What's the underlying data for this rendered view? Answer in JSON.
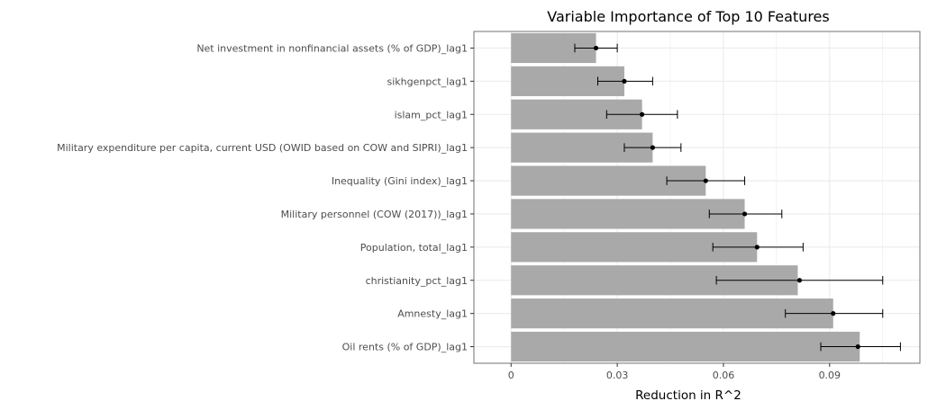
{
  "chart_data": {
    "type": "bar",
    "orientation": "horizontal",
    "title": "Variable Importance of Top 10 Features",
    "xlabel": "Reduction in R^2",
    "ylabel": "",
    "xlim": [
      -0.0105,
      0.1155
    ],
    "x_ticks": [
      0,
      0.03,
      0.06,
      0.09
    ],
    "x_tick_labels": [
      "0",
      "0.03",
      "0.06",
      "0.09"
    ],
    "grid": true,
    "colors": {
      "bar": "#a9a9a9",
      "point": "#000000",
      "grid": "#ebebeb",
      "panel_border": "#7f7f7f"
    },
    "categories": [
      "Net investment in nonfinancial assets (% of GDP)_lag1",
      "sikhgenpct_lag1",
      "islam_pct_lag1",
      "Military expenditure per capita, current USD (OWID based on COW and SIPRI)_lag1",
      "Inequality (Gini index)_lag1",
      "Military personnel (COW (2017))_lag1",
      "Population, total_lag1",
      "christianity_pct_lag1",
      "Amnesty_lag1",
      "Oil rents (% of GDP)_lag1"
    ],
    "values": [
      0.024,
      0.032,
      0.037,
      0.04,
      0.055,
      0.066,
      0.0695,
      0.081,
      0.091,
      0.0985
    ],
    "points": [
      0.024,
      0.032,
      0.037,
      0.04,
      0.055,
      0.066,
      0.0695,
      0.0815,
      0.091,
      0.098
    ],
    "error_low": [
      0.018,
      0.0245,
      0.027,
      0.032,
      0.044,
      0.056,
      0.057,
      0.058,
      0.0775,
      0.0875
    ],
    "error_high": [
      0.03,
      0.04,
      0.047,
      0.048,
      0.066,
      0.0765,
      0.0825,
      0.105,
      0.105,
      0.11
    ]
  }
}
